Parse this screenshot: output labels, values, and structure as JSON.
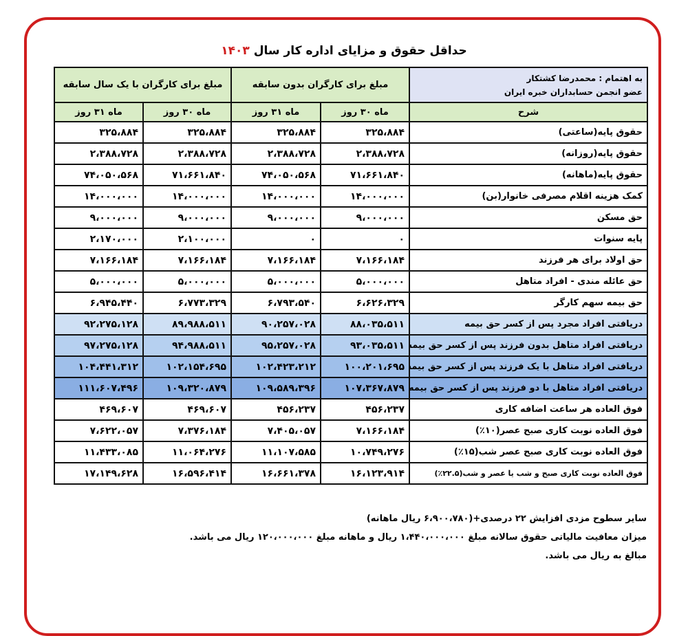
{
  "title": {
    "text": "حداقل حقوق و مزایای اداره کار سال",
    "year": "۱۴۰۳"
  },
  "table": {
    "credit": {
      "name": "به اهتمام : محمدرضا کشتکار",
      "role": "عضو انجمن حسابداران خبره ایران"
    },
    "groups": [
      "مبلغ برای کارگران بدون سابقه",
      "مبلغ برای کارگران با یک سال سابقه"
    ],
    "subheaders": [
      "شرح",
      "ماه ۳۰ روز",
      "ماه ۳۱ روز",
      "ماه ۳۰ روز",
      "ماه ۳۱ روز"
    ],
    "rows": [
      [
        "حقوق پایه(ساعتی)",
        "۳۲۵،۸۸۴",
        "۳۲۵،۸۸۴",
        "۳۲۵،۸۸۴",
        "۳۲۵،۸۸۴"
      ],
      [
        "حقوق پایه(روزانه)",
        "۲،۳۸۸،۷۲۸",
        "۲،۳۸۸،۷۲۸",
        "۲،۳۸۸،۷۲۸",
        "۲،۳۸۸،۷۲۸"
      ],
      [
        "حقوق پایه(ماهانه)",
        "۷۱،۶۶۱،۸۴۰",
        "۷۴،۰۵۰،۵۶۸",
        "۷۱،۶۶۱،۸۴۰",
        "۷۴،۰۵۰،۵۶۸"
      ],
      [
        "کمک هزینه اقلام مصرفی خانوار(بن)",
        "۱۴،۰۰۰،۰۰۰",
        "۱۴،۰۰۰،۰۰۰",
        "۱۴،۰۰۰،۰۰۰",
        "۱۴،۰۰۰،۰۰۰"
      ],
      [
        "حق مسکن",
        "۹،۰۰۰،۰۰۰",
        "۹،۰۰۰،۰۰۰",
        "۹،۰۰۰،۰۰۰",
        "۹،۰۰۰،۰۰۰"
      ],
      [
        "پایه سنوات",
        "۰",
        "۰",
        "۲،۱۰۰،۰۰۰",
        "۲،۱۷۰،۰۰۰"
      ],
      [
        "حق اولاد برای هر فرزند",
        "۷،۱۶۶،۱۸۴",
        "۷،۱۶۶،۱۸۴",
        "۷،۱۶۶،۱۸۴",
        "۷،۱۶۶،۱۸۴"
      ],
      [
        "حق عائله مندی - افراد متاهل",
        "۵،۰۰۰،۰۰۰",
        "۵،۰۰۰،۰۰۰",
        "۵،۰۰۰،۰۰۰",
        "۵،۰۰۰،۰۰۰"
      ],
      [
        "حق بیمه سهم کارگر",
        "۶،۶۲۶،۳۲۹",
        "۶،۷۹۳،۵۴۰",
        "۶،۷۷۳،۳۲۹",
        "۶،۹۴۵،۴۴۰"
      ],
      [
        "دریافتی افراد مجرد پس از کسر حق بیمه",
        "۸۸،۰۳۵،۵۱۱",
        "۹۰،۲۵۷،۰۲۸",
        "۸۹،۹۸۸،۵۱۱",
        "۹۲،۲۷۵،۱۲۸"
      ],
      [
        "دریافتی افراد متاهل بدون فرزند پس از کسر حق بیمه",
        "۹۳،۰۳۵،۵۱۱",
        "۹۵،۲۵۷،۰۲۸",
        "۹۴،۹۸۸،۵۱۱",
        "۹۷،۲۷۵،۱۲۸"
      ],
      [
        "دریافتی افراد متاهل با یک فرزند پس از کسر حق بیمه",
        "۱۰۰،۲۰۱،۶۹۵",
        "۱۰۲،۴۲۳،۲۱۲",
        "۱۰۲،۱۵۴،۶۹۵",
        "۱۰۴،۴۴۱،۳۱۲"
      ],
      [
        "دریافتی افراد متاهل با دو فرزند پس از کسر حق بیمه",
        "۱۰۷،۳۶۷،۸۷۹",
        "۱۰۹،۵۸۹،۳۹۶",
        "۱۰۹،۳۲۰،۸۷۹",
        "۱۱۱،۶۰۷،۴۹۶"
      ],
      [
        "فوق العاده هر ساعت اضافه کاری",
        "۴۵۶،۲۳۷",
        "۴۵۶،۲۳۷",
        "۴۶۹،۶۰۷",
        "۴۶۹،۶۰۷"
      ],
      [
        "فوق العاده نوبت کاری صبح عصر(۱۰٪)",
        "۷،۱۶۶،۱۸۴",
        "۷،۴۰۵،۰۵۷",
        "۷،۳۷۶،۱۸۴",
        "۷،۶۲۲،۰۵۷"
      ],
      [
        "فوق العاده نوبت کاری صبح عصر شب(۱۵٪)",
        "۱۰،۷۴۹،۲۷۶",
        "۱۱،۱۰۷،۵۸۵",
        "۱۱،۰۶۴،۲۷۶",
        "۱۱،۴۳۳،۰۸۵"
      ],
      [
        "فوق العاده نوبت کاری صبح و شب یا عصر و شب(۲۲.۵٪)",
        "۱۶،۱۲۳،۹۱۴",
        "۱۶،۶۶۱،۳۷۸",
        "۱۶،۵۹۶،۴۱۴",
        "۱۷،۱۴۹،۶۲۸"
      ]
    ]
  },
  "notes": [
    "سایر سطوح مزدی افزایش ۲۲ درصدی+(۶،۹۰۰،۷۸۰ ریال ماهانه)",
    "میزان معافیت مالیاتی حقوق سالانه مبلغ ۱،۴۴۰،۰۰۰،۰۰۰ ریال و ماهانه مبلغ ۱۲۰،۰۰۰،۰۰۰ ریال می باشد.",
    "مبالغ به ریال می باشد."
  ]
}
